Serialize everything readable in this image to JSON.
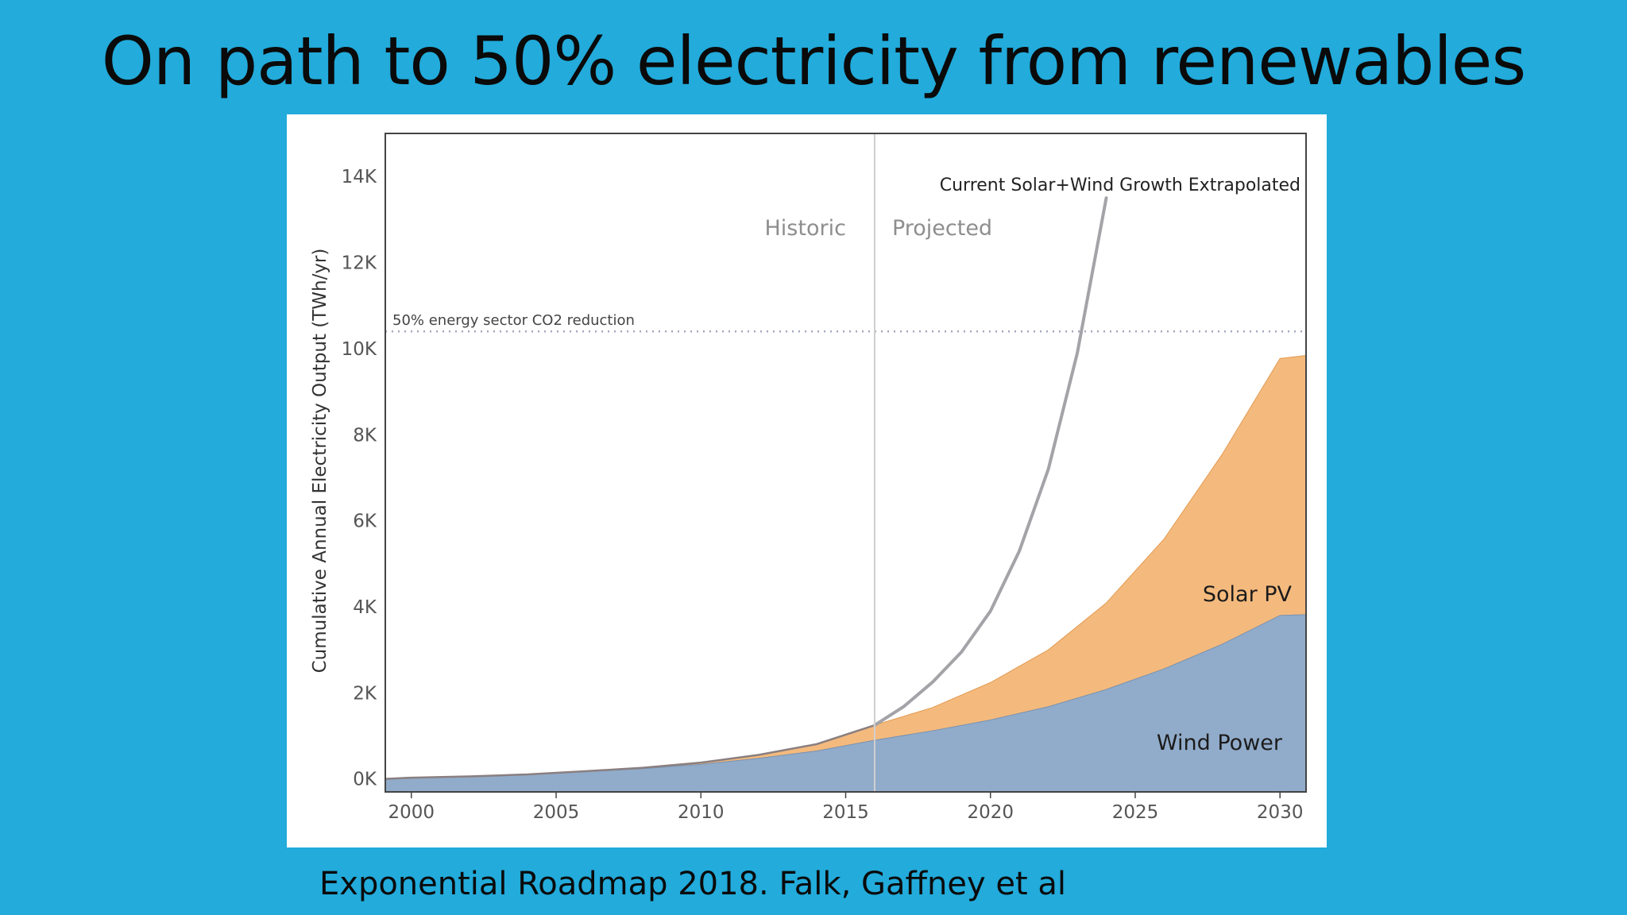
{
  "slide": {
    "title": "On path to 50% electricity from renewables",
    "caption": "Exponential Roadmap 2018. Falk, Gaffney et al"
  },
  "chart_data": {
    "type": "area",
    "title": "",
    "xlabel": "",
    "ylabel": "Cumulative Annual Electricity Output (TWh/yr)",
    "xlim": [
      1999.1,
      2030.9
    ],
    "ylim": [
      -300,
      15000
    ],
    "x_ticks": [
      2000,
      2005,
      2010,
      2015,
      2020,
      2025,
      2030
    ],
    "y_ticks": [
      {
        "value": 0,
        "label": "0K"
      },
      {
        "value": 2000,
        "label": "2K"
      },
      {
        "value": 4000,
        "label": "4K"
      },
      {
        "value": 6000,
        "label": "6K"
      },
      {
        "value": 8000,
        "label": "8K"
      },
      {
        "value": 10000,
        "label": "10K"
      },
      {
        "value": 12000,
        "label": "12K"
      },
      {
        "value": 14000,
        "label": "14K"
      }
    ],
    "grid": false,
    "x": [
      1999,
      2000,
      2002,
      2004,
      2006,
      2008,
      2010,
      2012,
      2014,
      2016,
      2018,
      2020,
      2022,
      2024,
      2026,
      2028,
      2030,
      2031
    ],
    "series": [
      {
        "name": "Wind Power",
        "color": "#91acca",
        "values": [
          0,
          30,
          60,
          100,
          170,
          240,
          340,
          480,
          650,
          900,
          1120,
          1370,
          1680,
          2080,
          2560,
          3130,
          3800,
          3820
        ]
      },
      {
        "name": "Solar PV",
        "color": "#f4ba7d",
        "values": [
          0,
          0,
          0,
          5,
          10,
          20,
          40,
          80,
          160,
          350,
          540,
          870,
          1320,
          2010,
          3020,
          4410,
          5970,
          6030
        ]
      }
    ],
    "extrapolation": {
      "name": "Current Solar+Wind Growth Extrapolated",
      "color": "#a3a3a8",
      "x": [
        2016,
        2017,
        2018,
        2019,
        2020,
        2021,
        2022,
        2023,
        2024
      ],
      "values": [
        1250,
        1680,
        2250,
        2950,
        3900,
        5300,
        7200,
        9900,
        13500
      ]
    },
    "reference_line": {
      "label": "50% energy sector CO2 reduction",
      "value": 10400,
      "color": "#a4a8be"
    },
    "divider": {
      "x": 2016,
      "left_label": "Historic",
      "right_label": "Projected"
    },
    "colors": {
      "axis": "#444444",
      "tick_text": "#555555",
      "divider": "#d0d0d0",
      "region_text": "#8e8e8e",
      "series_label_text": "#1c1c1c"
    }
  }
}
